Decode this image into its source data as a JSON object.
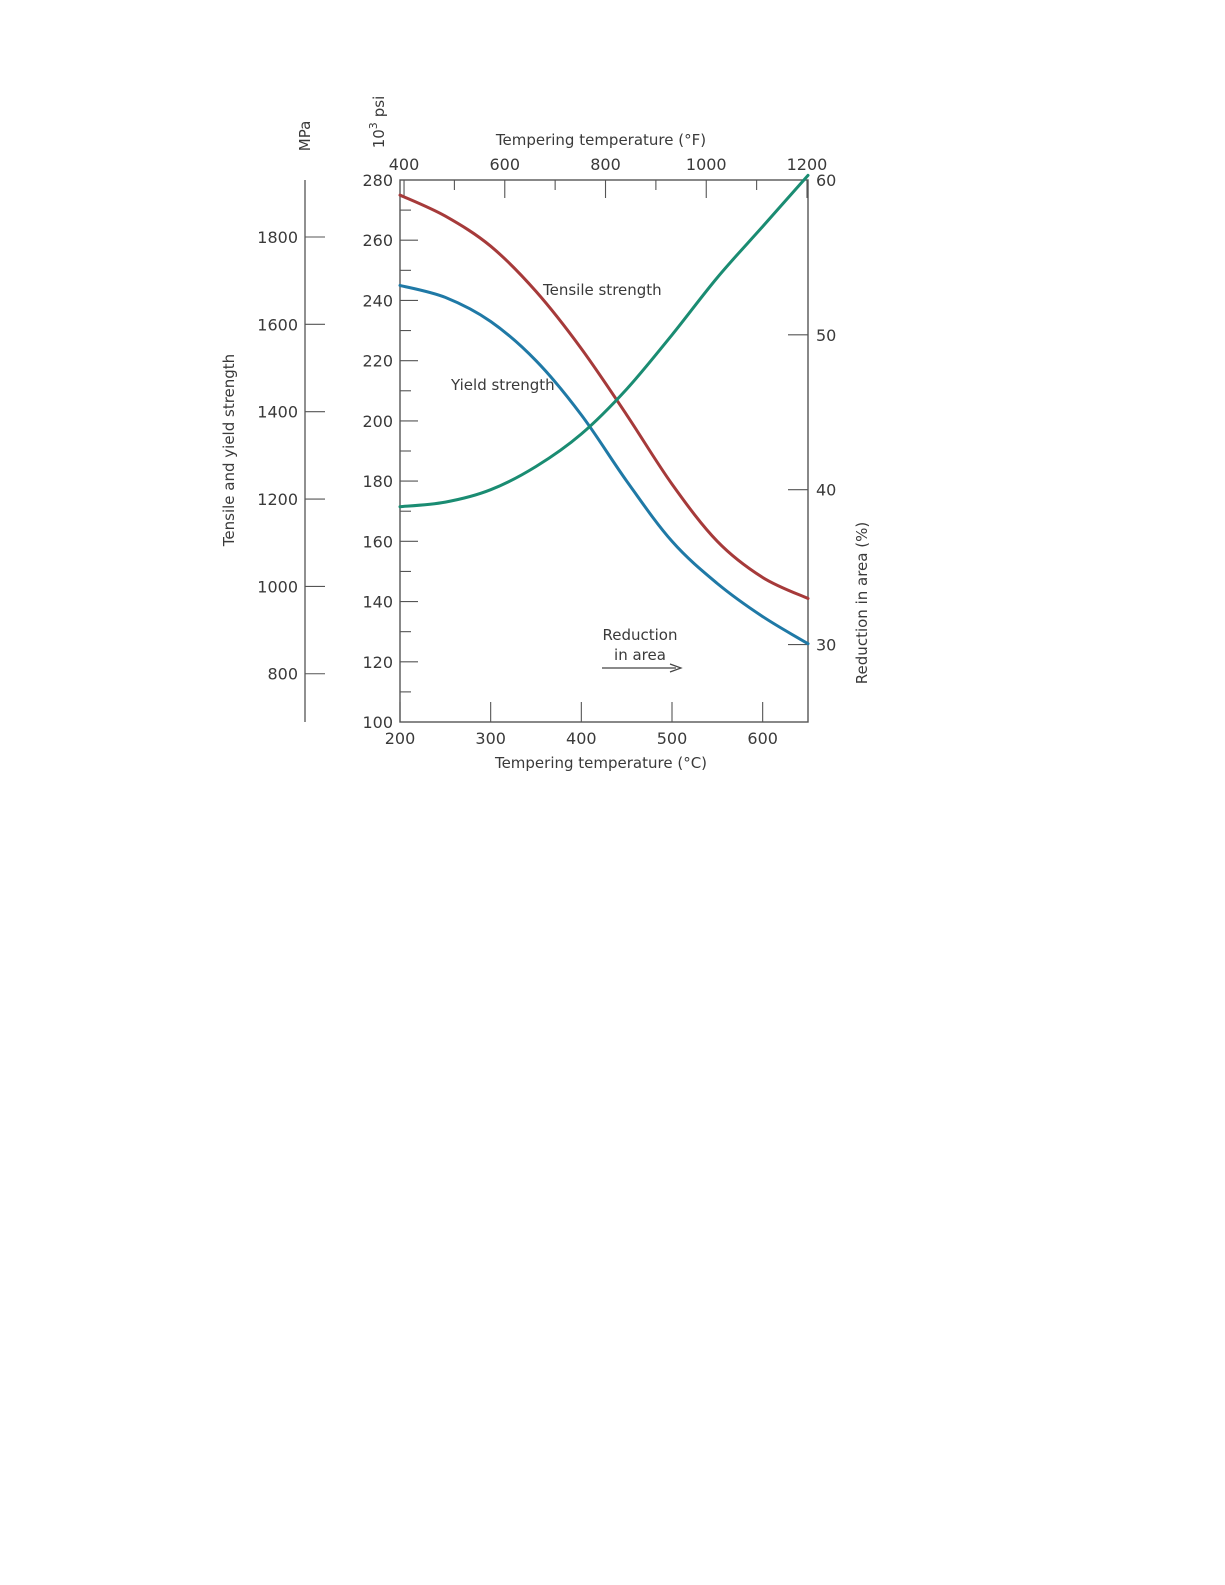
{
  "chart_data": {
    "type": "line",
    "x_axis": {
      "label": "Tempering temperature (°C)",
      "range": [
        200,
        650
      ],
      "ticks": [
        200,
        300,
        400,
        500,
        600
      ]
    },
    "x_axis_top": {
      "label": "Tempering temperature (°F)",
      "range": [
        392,
        1202
      ],
      "ticks": [
        400,
        600,
        800,
        1000,
        1200
      ]
    },
    "y_axis_psi": {
      "unit_label": "10³ psi",
      "unit_base": "10",
      "unit_exp": "3",
      "unit_rest": "psi",
      "range": [
        100,
        280
      ],
      "ticks": [
        100,
        120,
        140,
        160,
        180,
        200,
        220,
        240,
        260,
        280
      ],
      "minor_ticks": [
        110,
        130,
        150,
        170,
        190,
        210,
        230,
        250,
        270
      ]
    },
    "y_axis_mpa": {
      "unit_label": "MPa",
      "label": "Tensile and yield strength",
      "range": [
        689.5,
        1930.5
      ],
      "ticks": [
        800,
        1000,
        1200,
        1400,
        1600,
        1800
      ]
    },
    "y_axis_right": {
      "label": "Reduction in area (%)",
      "range": [
        25,
        60
      ],
      "ticks": [
        30,
        40,
        50,
        60
      ]
    },
    "series": [
      {
        "name": "Tensile strength",
        "axis": "psi",
        "color": "#a63a3a",
        "points": [
          [
            200,
            275
          ],
          [
            250,
            268
          ],
          [
            300,
            258
          ],
          [
            350,
            243
          ],
          [
            400,
            224
          ],
          [
            450,
            202
          ],
          [
            500,
            179
          ],
          [
            550,
            160
          ],
          [
            600,
            148
          ],
          [
            650,
            141
          ]
        ]
      },
      {
        "name": "Yield strength",
        "axis": "psi",
        "color": "#1f79a6",
        "points": [
          [
            200,
            245
          ],
          [
            250,
            241
          ],
          [
            300,
            233
          ],
          [
            350,
            220
          ],
          [
            400,
            202
          ],
          [
            450,
            180
          ],
          [
            500,
            160
          ],
          [
            550,
            146
          ],
          [
            600,
            135
          ],
          [
            650,
            126
          ]
        ]
      },
      {
        "name": "Reduction in area",
        "label_lines": [
          "Reduction",
          "in area"
        ],
        "axis": "right",
        "color": "#1a8c72",
        "points": [
          [
            200,
            38.9
          ],
          [
            250,
            39.2
          ],
          [
            300,
            40.0
          ],
          [
            350,
            41.5
          ],
          [
            400,
            43.6
          ],
          [
            450,
            46.5
          ],
          [
            500,
            50.0
          ],
          [
            550,
            53.7
          ],
          [
            600,
            57.0
          ],
          [
            650,
            60.3
          ]
        ]
      }
    ]
  }
}
